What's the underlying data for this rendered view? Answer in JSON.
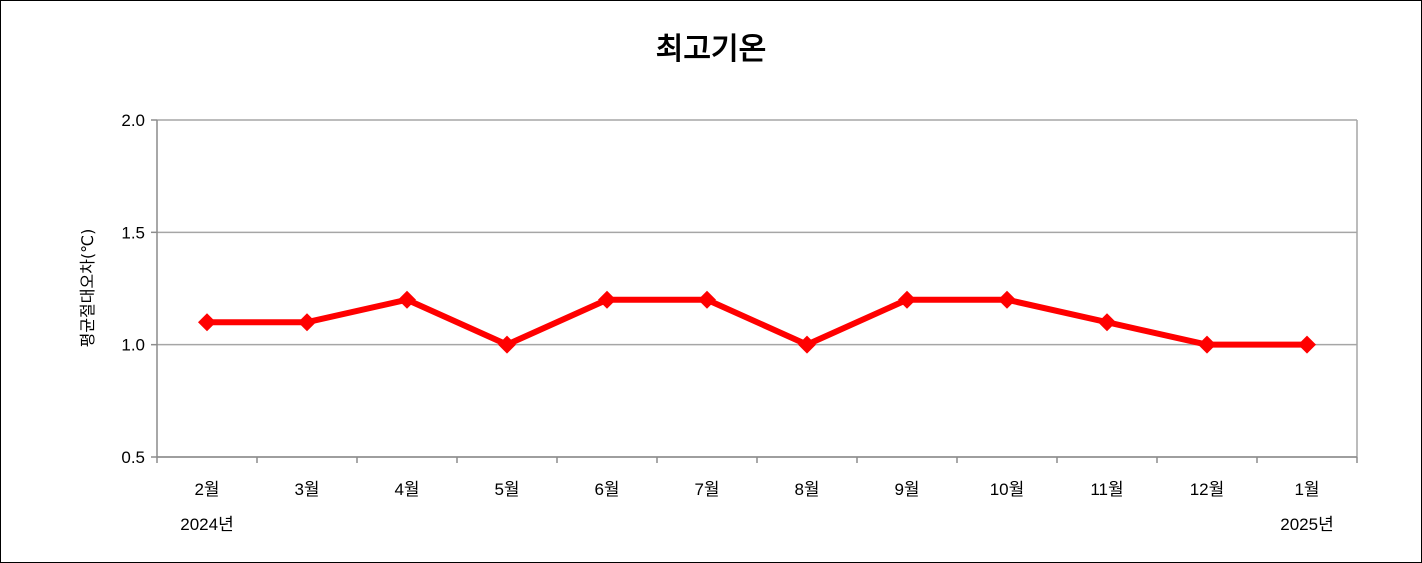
{
  "chart_data": {
    "type": "line",
    "title": "최고기온",
    "ylabel": "평균절대오차(℃)",
    "xlabel": "",
    "categories": [
      "2월",
      "3월",
      "4월",
      "5월",
      "6월",
      "7월",
      "8월",
      "9월",
      "10월",
      "11월",
      "12월",
      "1월"
    ],
    "year_labels": [
      {
        "category": "2월",
        "text": "2024년"
      },
      {
        "category": "1월",
        "text": "2025년"
      }
    ],
    "series": [
      {
        "values": [
          1.1,
          1.1,
          1.2,
          1.0,
          1.2,
          1.2,
          1.0,
          1.2,
          1.2,
          1.1,
          1.0,
          1.0
        ]
      }
    ],
    "ylim": [
      0.5,
      2.0
    ],
    "yticks": [
      "0.5",
      "1.0",
      "1.5",
      "2.0"
    ],
    "grid": true,
    "colors": {
      "series": "#ff0000",
      "grid": "#a6a6a6",
      "axis": "#8c8c8c"
    }
  }
}
